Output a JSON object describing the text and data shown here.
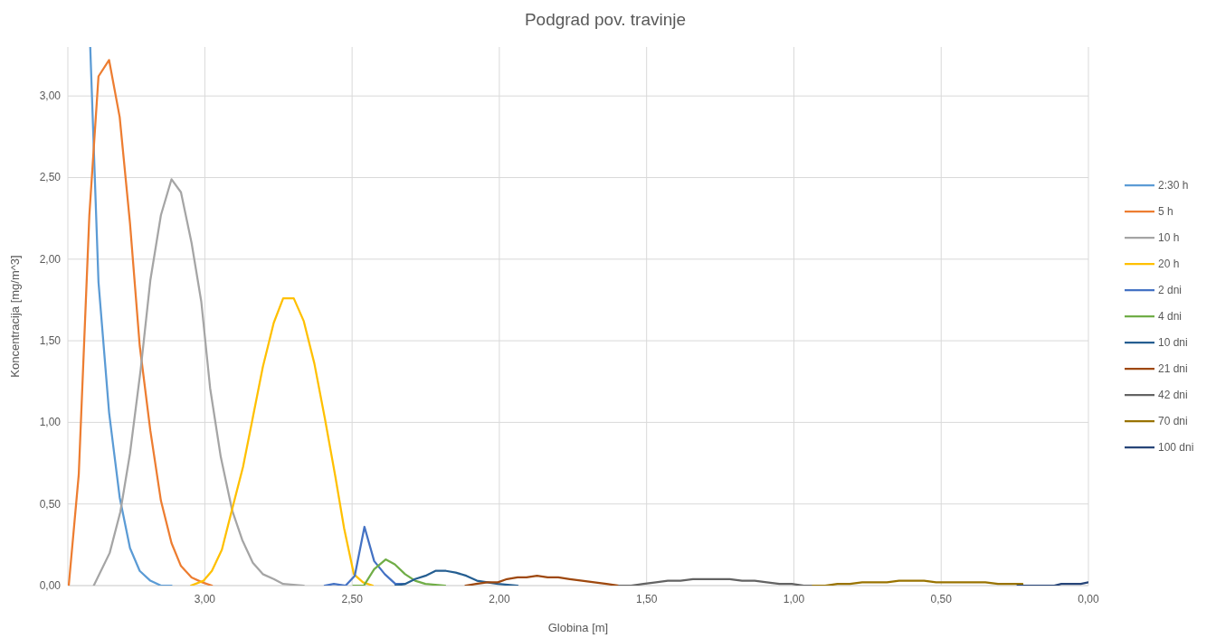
{
  "chart_data": {
    "type": "line",
    "title": "Podgrad pov. travinje",
    "xlabel": "Globina [m]",
    "ylabel": "Koncentracija [mg/m^3]",
    "xlim": [
      3.465,
      0
    ],
    "ylim": [
      0,
      3.3
    ],
    "xticks": [
      {
        "value": 3,
        "label": "3,00"
      },
      {
        "value": 2.5,
        "label": "2,50"
      },
      {
        "value": 2,
        "label": "2,00"
      },
      {
        "value": 1.5,
        "label": "1,50"
      },
      {
        "value": 1,
        "label": "1,00"
      },
      {
        "value": 0.5,
        "label": "0,50"
      },
      {
        "value": 0,
        "label": "0,00"
      }
    ],
    "yticks": [
      {
        "value": 0,
        "label": "0,00"
      },
      {
        "value": 0.5,
        "label": "0,50"
      },
      {
        "value": 1,
        "label": "1,00"
      },
      {
        "value": 1.5,
        "label": "1,50"
      },
      {
        "value": 2,
        "label": "2,00"
      },
      {
        "value": 2.5,
        "label": "2,50"
      },
      {
        "value": 3,
        "label": "3,00"
      }
    ],
    "grid": true,
    "legend": "right",
    "marker": "none",
    "line_style": "solid",
    "series": [
      {
        "name": "2:30 h",
        "color": "#5b9bd5",
        "x": [
          3.389,
          3.361,
          3.325,
          3.289,
          3.254,
          3.221,
          3.185,
          3.149,
          3.113
        ],
        "values": [
          3.3,
          1.86,
          1.06,
          0.54,
          0.23,
          0.09,
          0.03,
          0.0,
          0
        ]
      },
      {
        "name": "5 h",
        "color": "#ed7d31",
        "x": [
          3.462,
          3.428,
          3.392,
          3.361,
          3.325,
          3.289,
          3.254,
          3.221,
          3.185,
          3.149,
          3.113,
          3.081,
          3.045,
          3.009,
          2.976
        ],
        "values": [
          0,
          0.68,
          2.27,
          3.12,
          3.22,
          2.87,
          2.22,
          1.47,
          0.95,
          0.52,
          0.26,
          0.12,
          0.05,
          0.02,
          0
        ]
      },
      {
        "name": "10 h",
        "color": "#a5a5a5",
        "x": [
          3.377,
          3.323,
          3.287,
          3.254,
          3.218,
          3.185,
          3.149,
          3.113,
          3.081,
          3.045,
          3.012,
          2.982,
          2.946,
          2.907,
          2.873,
          2.837,
          2.803,
          2.766,
          2.734,
          2.664
        ],
        "values": [
          0,
          0.2,
          0.45,
          0.81,
          1.32,
          1.87,
          2.27,
          2.49,
          2.41,
          2.1,
          1.74,
          1.21,
          0.79,
          0.46,
          0.28,
          0.14,
          0.07,
          0.04,
          0.01,
          0
        ]
      },
      {
        "name": "20 h",
        "color": "#ffc000",
        "x": [
          3.047,
          3.004,
          2.976,
          2.942,
          2.907,
          2.87,
          2.837,
          2.803,
          2.766,
          2.734,
          2.698,
          2.664,
          2.628,
          2.592,
          2.557,
          2.527,
          2.494,
          2.463,
          2.43
        ],
        "values": [
          0,
          0.03,
          0.09,
          0.22,
          0.47,
          0.73,
          1.03,
          1.34,
          1.61,
          1.76,
          1.76,
          1.62,
          1.36,
          1.02,
          0.67,
          0.35,
          0.07,
          0.02,
          0
        ]
      },
      {
        "name": "2 dni",
        "color": "#4472c4",
        "x": [
          2.593,
          2.562,
          2.522,
          2.491,
          2.458,
          2.425,
          2.389,
          2.353,
          2.32
        ],
        "values": [
          0,
          0.01,
          0,
          0.06,
          0.36,
          0.15,
          0.07,
          0.01,
          0.01
        ]
      },
      {
        "name": "4 dni",
        "color": "#70ad47",
        "x": [
          2.496,
          2.46,
          2.425,
          2.386,
          2.355,
          2.32,
          2.286,
          2.251,
          2.184
        ],
        "values": [
          0,
          0,
          0.1,
          0.16,
          0.13,
          0.07,
          0.03,
          0.01,
          0
        ]
      },
      {
        "name": "10 dni",
        "color": "#255e91",
        "x": [
          2.353,
          2.32,
          2.286,
          2.251,
          2.217,
          2.181,
          2.148,
          2.112,
          2.076,
          2.041,
          2.005,
          1.938
        ],
        "values": [
          0,
          0.01,
          0.04,
          0.06,
          0.09,
          0.09,
          0.08,
          0.06,
          0.03,
          0.02,
          0.01,
          0
        ]
      },
      {
        "name": "21 dni",
        "color": "#9e480e",
        "x": [
          2.115,
          2.079,
          2.041,
          2.005,
          1.974,
          1.938,
          1.908,
          1.872,
          1.836,
          1.8,
          1.761,
          1.719,
          1.678,
          1.636,
          1.594
        ],
        "values": [
          0,
          0.01,
          0.02,
          0.02,
          0.04,
          0.05,
          0.05,
          0.06,
          0.05,
          0.05,
          0.04,
          0.03,
          0.02,
          0.01,
          0
        ]
      },
      {
        "name": "42 dni",
        "color": "#636363",
        "x": [
          1.594,
          1.553,
          1.511,
          1.468,
          1.428,
          1.385,
          1.343,
          1.301,
          1.259,
          1.218,
          1.176,
          1.133,
          1.092,
          1.049,
          1.007,
          0.966,
          0.936
        ],
        "values": [
          0,
          0,
          0.01,
          0.02,
          0.03,
          0.03,
          0.04,
          0.04,
          0.04,
          0.04,
          0.03,
          0.03,
          0.02,
          0.01,
          0.01,
          0,
          0
        ]
      },
      {
        "name": "70 dni",
        "color": "#997300",
        "x": [
          0.936,
          0.894,
          0.852,
          0.81,
          0.768,
          0.726,
          0.684,
          0.643,
          0.601,
          0.558,
          0.517,
          0.475,
          0.433,
          0.391,
          0.35,
          0.307,
          0.266,
          0.224
        ],
        "values": [
          0,
          0,
          0.01,
          0.01,
          0.02,
          0.02,
          0.02,
          0.03,
          0.03,
          0.03,
          0.02,
          0.02,
          0.02,
          0.02,
          0.02,
          0.01,
          0.01,
          0.01
        ]
      },
      {
        "name": "100 dni",
        "color": "#264478",
        "x": [
          0.241,
          0.199,
          0.157,
          0.116,
          0.092,
          0.057,
          0.026,
          0
        ],
        "values": [
          0,
          0,
          0,
          0,
          0.01,
          0.01,
          0.01,
          0.02
        ]
      }
    ]
  }
}
